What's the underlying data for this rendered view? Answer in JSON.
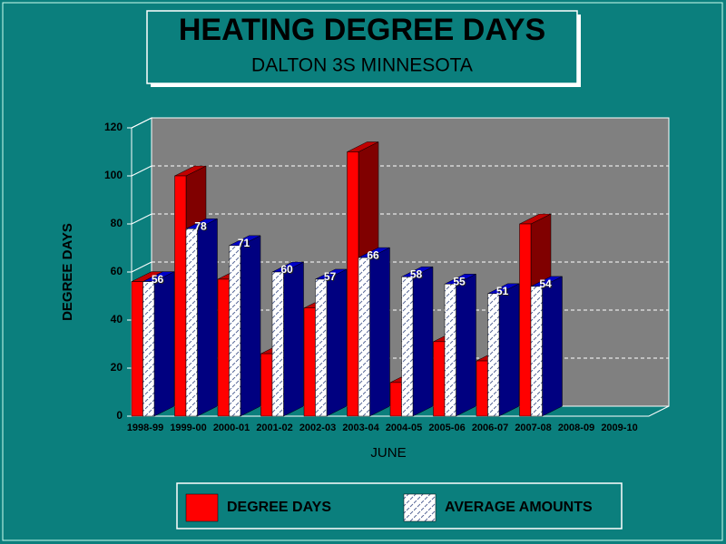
{
  "chart_data": {
    "type": "bar",
    "title": "HEATING DEGREE DAYS",
    "subtitle": "DALTON 3S MINNESOTA",
    "x_label": "JUNE",
    "y_label": "DEGREE DAYS",
    "categories": [
      "1998-99",
      "1999-00",
      "2000-01",
      "2001-02",
      "2002-03",
      "2003-04",
      "2004-05",
      "2005-06",
      "2006-07",
      "2007-08",
      "2008-09",
      "2009-10"
    ],
    "series": [
      {
        "name": "DEGREE DAYS",
        "color": "#ff0000",
        "side_color": "#800000",
        "values": [
          56,
          100,
          57,
          26,
          45,
          110,
          14,
          31,
          23,
          80,
          null,
          null
        ]
      },
      {
        "name": "AVERAGE AMOUNTS",
        "color": "#ffffff",
        "side_color": "#000080",
        "data_labels": true,
        "values": [
          56,
          78,
          71,
          60,
          57,
          66,
          58,
          55,
          51,
          54,
          null,
          null
        ]
      }
    ],
    "ylim": [
      0,
      120
    ],
    "yticks": [
      0,
      20,
      40,
      60,
      80,
      100,
      120
    ],
    "grid": true
  }
}
